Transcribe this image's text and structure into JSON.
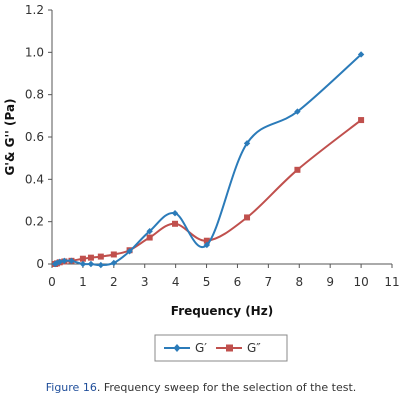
{
  "chart_data": {
    "type": "line",
    "ylabel": "G'& G'' (Pa)",
    "xlabel": "Frequency (Hz)",
    "x_ticks": [
      "0",
      "1",
      "2",
      "3",
      "4",
      "5",
      "6",
      "7",
      "8",
      "9",
      "10",
      "11"
    ],
    "y_ticks": [
      "0",
      "0.2",
      "0.4",
      "0.6",
      "0.8",
      "1.0",
      "1.2"
    ],
    "xlim": [
      0,
      11
    ],
    "ylim": [
      0,
      1.2
    ],
    "grid": false,
    "legend_position": "bottom-center",
    "series": [
      {
        "name": "G′",
        "color": "#2b7bb9",
        "marker": "diamond",
        "x": [
          0.1,
          0.16,
          0.25,
          0.4,
          0.63,
          1.0,
          1.26,
          1.58,
          2.0,
          2.51,
          3.16,
          3.98,
          5.01,
          6.31,
          7.94,
          10.0
        ],
        "y": [
          0.0,
          0.005,
          0.01,
          0.015,
          0.015,
          0.0,
          0.0,
          -0.005,
          0.005,
          0.06,
          0.155,
          0.24,
          0.09,
          0.57,
          0.72,
          0.99
        ]
      },
      {
        "name": "G″",
        "color": "#c0504d",
        "marker": "square",
        "x": [
          0.1,
          0.16,
          0.25,
          0.4,
          0.63,
          1.0,
          1.26,
          1.58,
          2.0,
          2.51,
          3.16,
          3.98,
          5.01,
          6.31,
          7.94,
          10.0
        ],
        "y": [
          0.0,
          0.003,
          0.008,
          0.012,
          0.015,
          0.025,
          0.03,
          0.035,
          0.045,
          0.065,
          0.125,
          0.19,
          0.11,
          0.22,
          0.445,
          0.68
        ]
      }
    ]
  },
  "caption": {
    "label": "Figure 16",
    "text": ". Frequency sweep for the selection of the test."
  }
}
